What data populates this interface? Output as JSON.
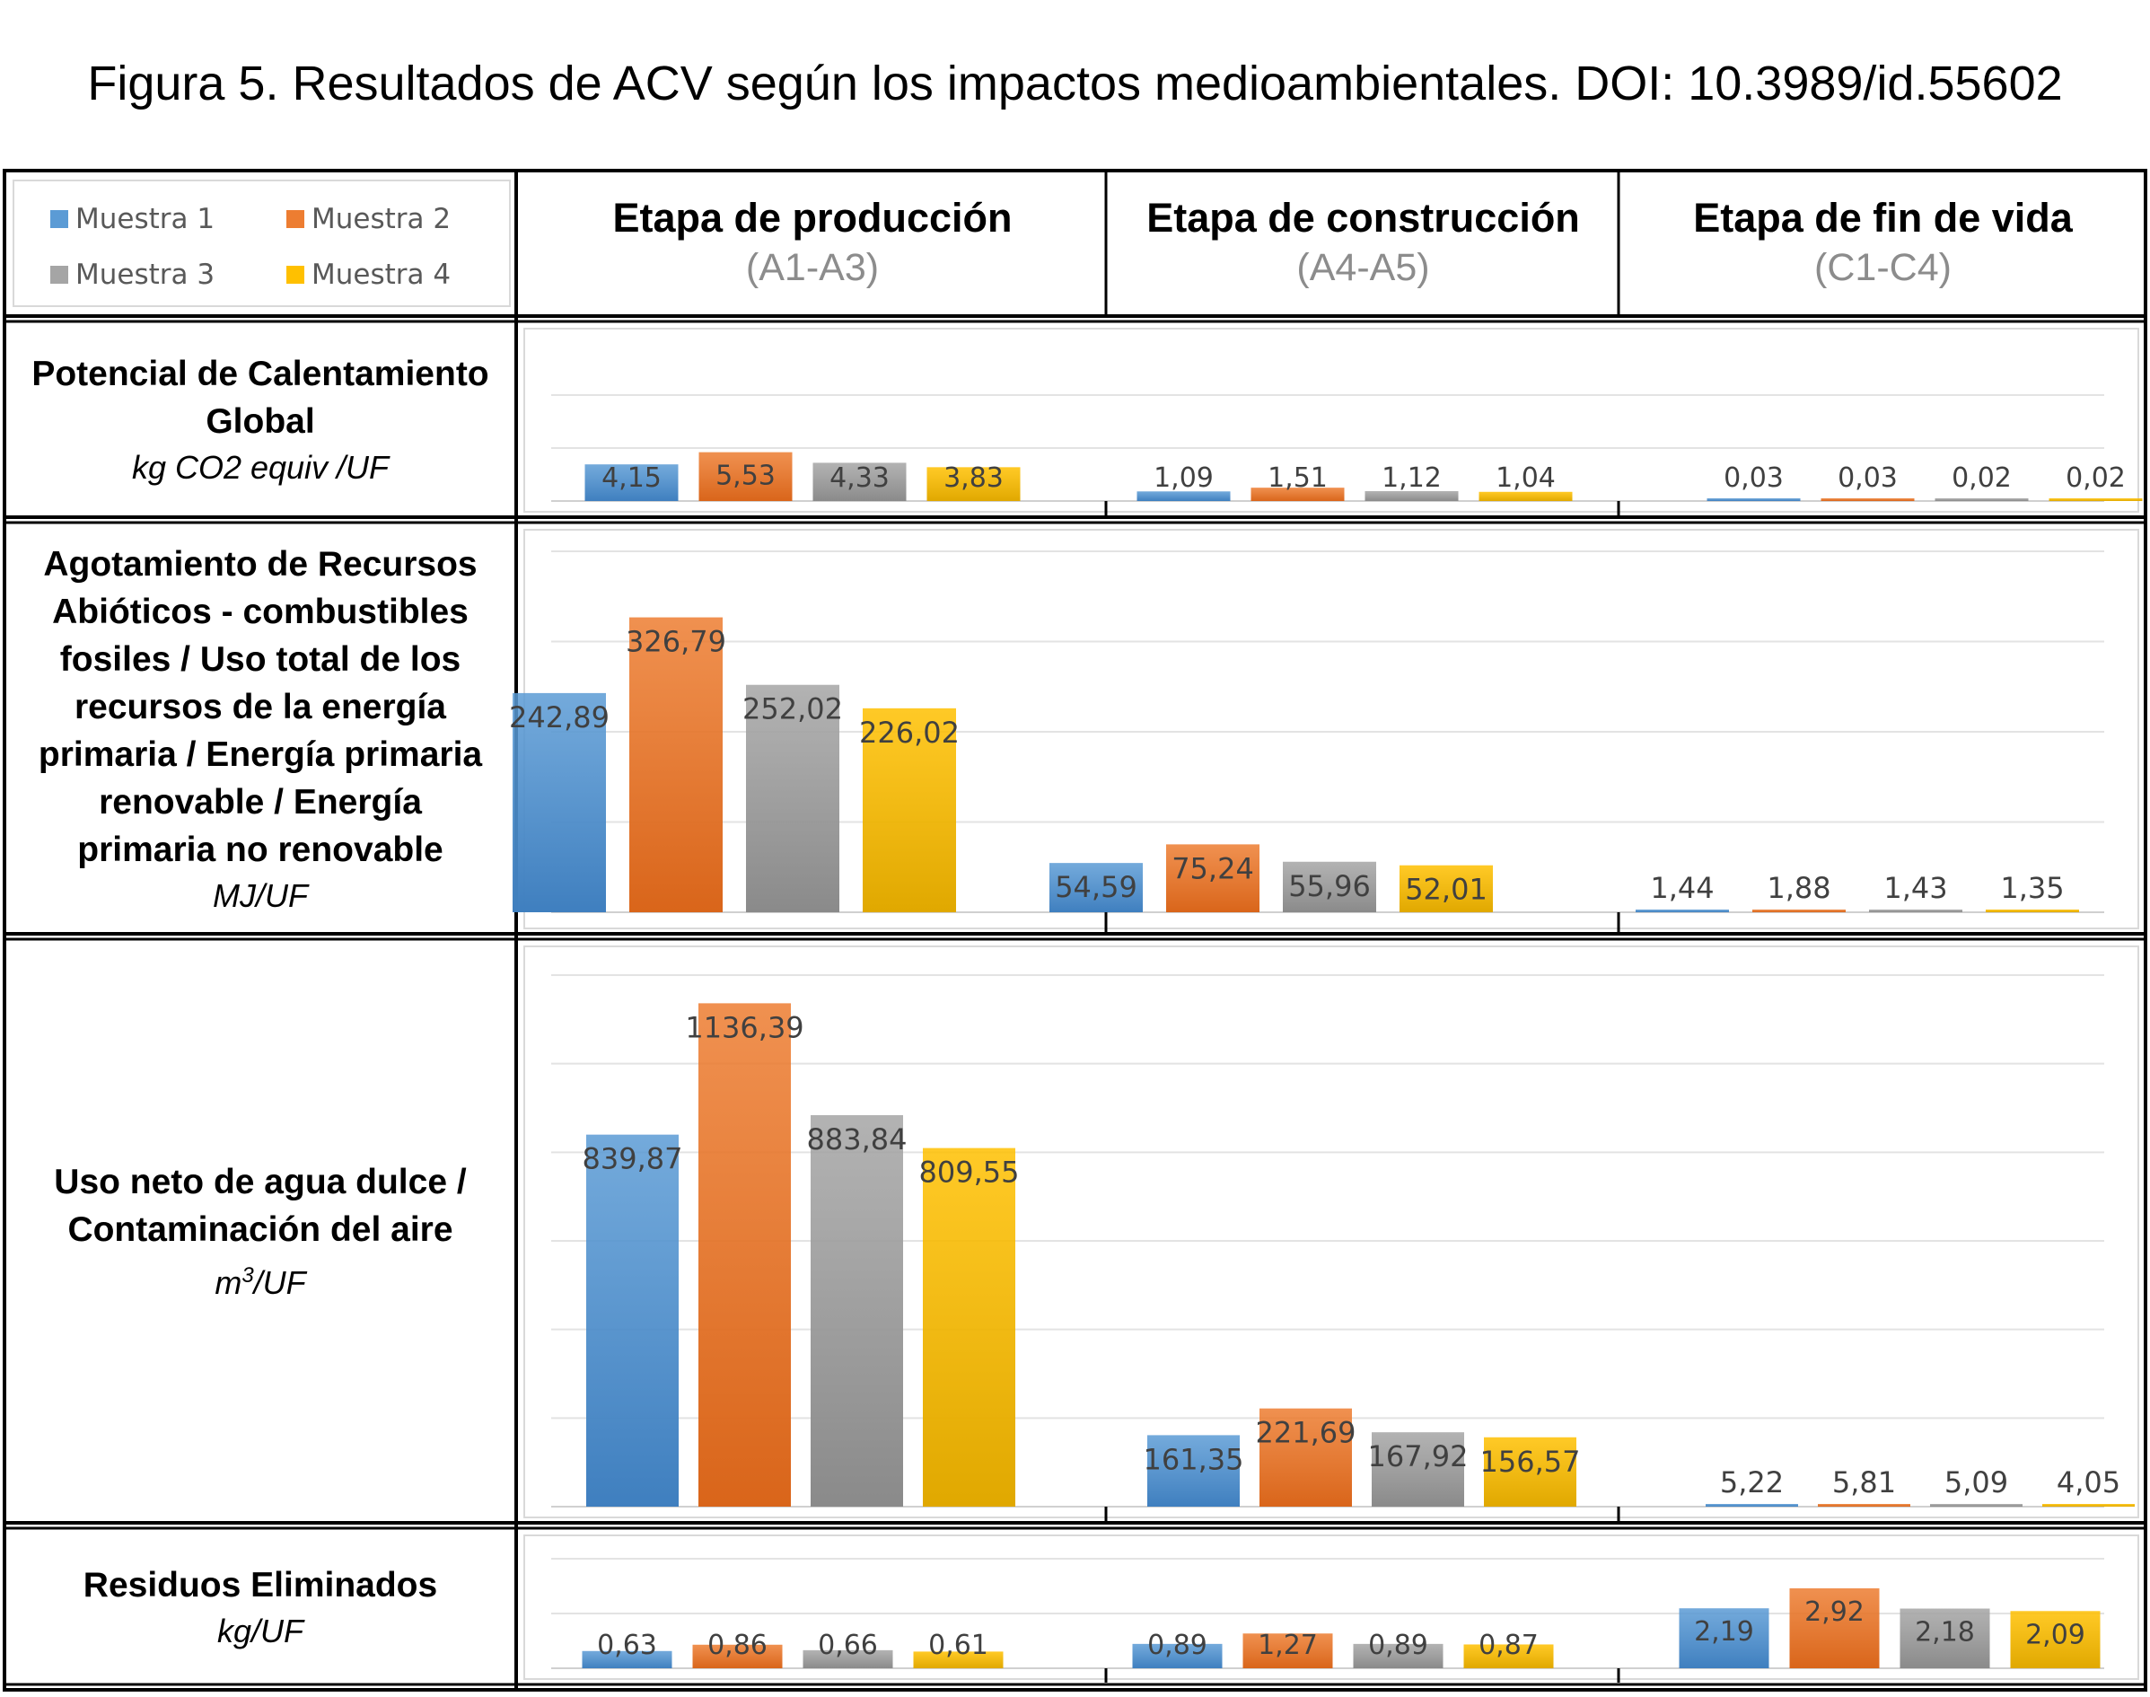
{
  "title": "Figura 5. Resultados de ACV según los impactos medioambientales. DOI: 10.3989/id.55602",
  "legend": [
    {
      "name": "Muestra 1",
      "color": "#5b9bd5"
    },
    {
      "name": "Muestra 2",
      "color": "#ed7d31"
    },
    {
      "name": "Muestra 3",
      "color": "#a5a5a5"
    },
    {
      "name": "Muestra 4",
      "color": "#ffc000"
    }
  ],
  "stages": [
    {
      "name": "Etapa de producción",
      "code": "(A1-A3)"
    },
    {
      "name": "Etapa de construcción",
      "code": "(A4-A5)"
    },
    {
      "name": "Etapa de fin de vida",
      "code": "(C1-C4)"
    }
  ],
  "rows": [
    {
      "label_lines": [
        "Potencial de Calentamiento",
        "Global"
      ],
      "unit": "kg CO2 equiv /UF",
      "unit_sup": ""
    },
    {
      "label_lines": [
        "Agotamiento de Recursos",
        "Abióticos - combustibles",
        "fosiles / Uso total de los",
        "recursos de la energía",
        "primaria  / Energía primaria",
        "renovable / Energía",
        "primaria no renovable"
      ],
      "unit": "MJ/UF",
      "unit_sup": ""
    },
    {
      "label_lines": [
        "Uso neto de agua dulce /",
        "Contaminación del aire"
      ],
      "unit": "/UF",
      "unit_prefix": "m",
      "unit_sup": "3"
    },
    {
      "label_lines": [
        "Residuos Eliminados"
      ],
      "unit": "kg/UF",
      "unit_sup": ""
    }
  ],
  "chart_data": [
    {
      "type": "bar",
      "title": "Potencial de Calentamiento Global",
      "categories": [
        "Etapa de producción",
        "Etapa de construcción",
        "Etapa de fin de vida"
      ],
      "series": [
        {
          "name": "Muestra 1",
          "values": [
            4.15,
            1.09,
            0.03
          ],
          "labels": [
            "4,15",
            "1,09",
            "0,03"
          ]
        },
        {
          "name": "Muestra 2",
          "values": [
            5.53,
            1.51,
            0.03
          ],
          "labels": [
            "5,53",
            "1,51",
            "0,03"
          ]
        },
        {
          "name": "Muestra 3",
          "values": [
            4.33,
            1.12,
            0.02
          ],
          "labels": [
            "4,33",
            "1,12",
            "0,02"
          ]
        },
        {
          "name": "Muestra 4",
          "values": [
            3.83,
            1.04,
            0.02
          ],
          "labels": [
            "3,83",
            "1,04",
            "0,02"
          ]
        }
      ],
      "ylim": [
        0,
        12
      ]
    },
    {
      "type": "bar",
      "title": "Agotamiento de Recursos Abióticos - combustibles fosiles / Uso total de los recursos de la energía primaria / Energía primaria renovable / Energía primaria no renovable",
      "categories": [
        "Etapa de producción",
        "Etapa de construcción",
        "Etapa de fin de vida"
      ],
      "series": [
        {
          "name": "Muestra 1",
          "values": [
            242.89,
            54.59,
            1.44
          ],
          "labels": [
            "242,89",
            "54,59",
            "1,44"
          ]
        },
        {
          "name": "Muestra 2",
          "values": [
            326.79,
            75.24,
            1.88
          ],
          "labels": [
            "326,79",
            "75,24",
            "1,88"
          ]
        },
        {
          "name": "Muestra 3",
          "values": [
            252.02,
            55.96,
            1.43
          ],
          "labels": [
            "252,02",
            "55,96",
            "1,43"
          ]
        },
        {
          "name": "Muestra 4",
          "values": [
            226.02,
            52.01,
            1.35
          ],
          "labels": [
            "226,02",
            "52,01",
            "1,35"
          ]
        }
      ],
      "ylim": [
        0,
        400
      ]
    },
    {
      "type": "bar",
      "title": "Uso neto de agua dulce / Contaminación del aire",
      "categories": [
        "Etapa de producción",
        "Etapa de construcción",
        "Etapa de fin de vida"
      ],
      "series": [
        {
          "name": "Muestra 1",
          "values": [
            839.87,
            161.35,
            5.22
          ],
          "labels": [
            "839,87",
            "161,35",
            "5,22"
          ]
        },
        {
          "name": "Muestra 2",
          "values": [
            1136.39,
            221.69,
            5.81
          ],
          "labels": [
            "1136,39",
            "221,69",
            "5,81"
          ]
        },
        {
          "name": "Muestra 3",
          "values": [
            883.84,
            167.92,
            5.09
          ],
          "labels": [
            "883,84",
            "167,92",
            "5,09"
          ]
        },
        {
          "name": "Muestra 4",
          "values": [
            809.55,
            156.57,
            4.05
          ],
          "labels": [
            "809,55",
            "156,57",
            "4,05"
          ]
        }
      ],
      "ylim": [
        0,
        1200
      ]
    },
    {
      "type": "bar",
      "title": "Residuos Eliminados",
      "categories": [
        "Etapa de producción",
        "Etapa de construcción",
        "Etapa de fin de vida"
      ],
      "series": [
        {
          "name": "Muestra 1",
          "values": [
            0.63,
            0.89,
            2.19
          ],
          "labels": [
            "0,63",
            "0,89",
            "2,19"
          ]
        },
        {
          "name": "Muestra 2",
          "values": [
            0.86,
            1.27,
            2.92
          ],
          "labels": [
            "0,86",
            "1,27",
            "2,92"
          ]
        },
        {
          "name": "Muestra 3",
          "values": [
            0.66,
            0.89,
            2.18
          ],
          "labels": [
            "0,66",
            "0,89",
            "2,18"
          ]
        },
        {
          "name": "Muestra 4",
          "values": [
            0.61,
            0.87,
            2.09
          ],
          "labels": [
            "0,61",
            "0,87",
            "2,09"
          ]
        }
      ],
      "ylim": [
        0,
        4
      ]
    }
  ]
}
